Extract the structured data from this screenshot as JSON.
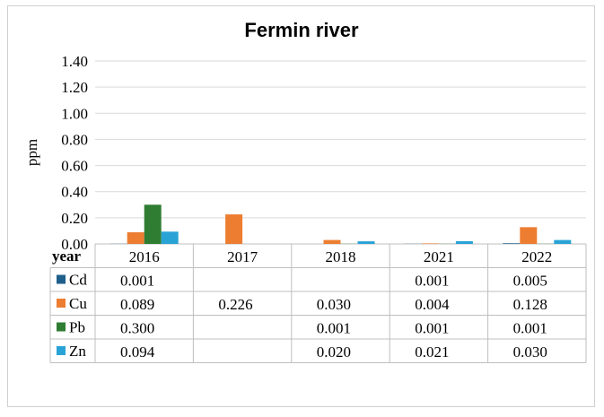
{
  "chart_data": {
    "type": "bar",
    "title": "Fermin river",
    "ylabel": "ppm",
    "xlabel": "year",
    "ylim": [
      0,
      1.4
    ],
    "ytick_labels": [
      "0.00",
      "0.20",
      "0.40",
      "0.60",
      "0.80",
      "1.00",
      "1.20",
      "1.40"
    ],
    "yticks": [
      0,
      0.2,
      0.4,
      0.6,
      0.8,
      1.0,
      1.2,
      1.4
    ],
    "grid": true,
    "legend": "data-table",
    "categories": [
      "2016",
      "2017",
      "2018",
      "2021",
      "2022"
    ],
    "series": [
      {
        "name": "Cd",
        "color": "#1f5f8b",
        "values": [
          0.001,
          null,
          null,
          0.001,
          0.005
        ],
        "labels": [
          "0.001",
          "",
          "",
          "0.001",
          "0.005"
        ]
      },
      {
        "name": "Cu",
        "color": "#ed7d31",
        "values": [
          0.089,
          0.226,
          0.03,
          0.004,
          0.128
        ],
        "labels": [
          "0.089",
          "0.226",
          "0.030",
          "0.004",
          "0.128"
        ]
      },
      {
        "name": "Pb",
        "color": "#2e7d32",
        "values": [
          0.3,
          null,
          0.001,
          0.001,
          0.001
        ],
        "labels": [
          "0.300",
          "",
          "0.001",
          "0.001",
          "0.001"
        ]
      },
      {
        "name": "Zn",
        "color": "#29a3d6",
        "values": [
          0.094,
          null,
          0.02,
          0.021,
          0.03
        ],
        "labels": [
          "0.094",
          "",
          "0.020",
          "0.021",
          "0.030"
        ]
      }
    ]
  }
}
